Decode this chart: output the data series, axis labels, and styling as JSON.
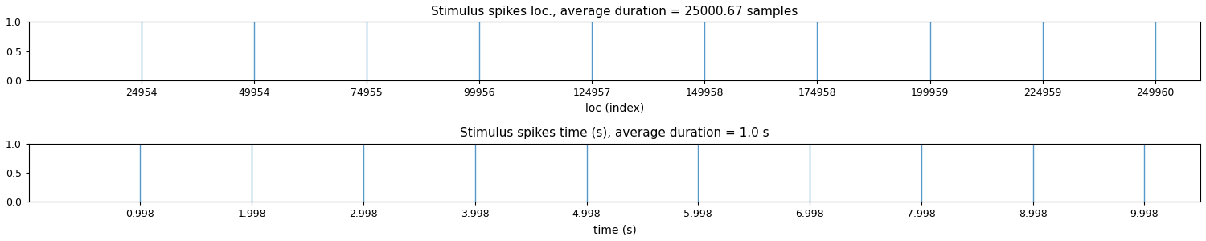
{
  "title1": "Stimulus spikes loc., average duration = 25000.67 samples",
  "title2": "Stimulus spikes time (s), average duration = 1.0 s",
  "xlabel1": "loc (index)",
  "xlabel2": "time (s)",
  "spike_locs": [
    24954,
    49954,
    74955,
    99956,
    124957,
    149958,
    174958,
    199959,
    224959,
    249960
  ],
  "spike_times": [
    0.998,
    1.998,
    2.998,
    3.998,
    4.998,
    5.998,
    6.998,
    7.998,
    8.998,
    9.998
  ],
  "ylim": [
    0.0,
    1.0
  ],
  "xlim1_min": 0,
  "xlim1_max": 260000,
  "xlim2_min": 0.0,
  "xlim2_max": 10.5,
  "line_color": "#5599cc",
  "line_width": 1.0,
  "yticks": [
    0.0,
    0.5,
    1.0
  ],
  "xticks1": [
    24954,
    49954,
    74955,
    99956,
    124957,
    149958,
    174958,
    199959,
    224959,
    249960
  ],
  "xticks2": [
    0.998,
    1.998,
    2.998,
    3.998,
    4.998,
    5.998,
    6.998,
    7.998,
    8.998,
    9.998
  ]
}
